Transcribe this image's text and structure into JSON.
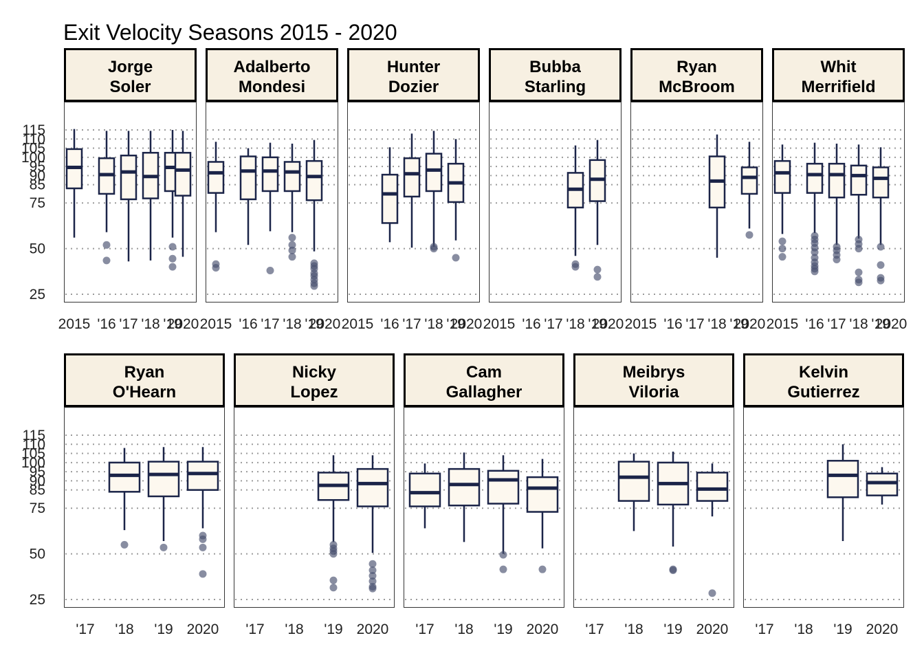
{
  "title": "Exit Velocity Seasons 2015 - 2020",
  "colors": {
    "box_fill": "#FDF8EF",
    "box_line": "#1B2448",
    "strip_fill": "#F7F0E2",
    "outlier": "#48506E",
    "grid": "#9A9A9A"
  },
  "chart_data": [
    {
      "type": "box",
      "title": "Exit Velocity Seasons 2015 - 2020",
      "y_ticks": [
        25,
        50,
        75,
        85,
        90,
        95,
        100,
        105,
        110,
        115
      ],
      "ylim": [
        23,
        118
      ],
      "grid": "horizontal dotted",
      "categories": [
        "2015",
        "'16",
        "'17",
        "'18",
        "'19",
        "2020"
      ],
      "panels": [
        {
          "name": "Jorge\nSoler",
          "boxes": [
            {
              "x": "2015",
              "low": 56,
              "q1": 83,
              "median": 94.5,
              "q3": 104.5,
              "high": 115.5,
              "outliers": []
            },
            {
              "x": "'16",
              "low": 59,
              "q1": 80,
              "median": 90.5,
              "q3": 99.5,
              "high": 114.5,
              "outliers": [
                52,
                43.5
              ]
            },
            {
              "x": "'17",
              "low": 43,
              "q1": 77,
              "median": 92,
              "q3": 101,
              "high": 114.5,
              "outliers": []
            },
            {
              "x": "'18",
              "low": 43.5,
              "q1": 77.5,
              "median": 89.5,
              "q3": 102.5,
              "high": 114.5,
              "outliers": []
            },
            {
              "x": "'19",
              "low": 56,
              "q1": 81.5,
              "median": 94.5,
              "q3": 102.5,
              "high": 115,
              "outliers": [
                51,
                44.5,
                40
              ]
            },
            {
              "x": "2020",
              "low": 45.5,
              "q1": 79,
              "median": 93,
              "q3": 102.5,
              "high": 114.5,
              "outliers": []
            }
          ]
        },
        {
          "name": "Adalberto\nMondesi",
          "boxes": [
            {
              "x": "2015",
              "low": 59,
              "q1": 80.5,
              "median": 91.5,
              "q3": 97.5,
              "high": 108.5,
              "outliers": [
                41.5,
                39.5
              ]
            },
            {
              "x": "'16",
              "low": 52,
              "q1": 77,
              "median": 92.5,
              "q3": 100.5,
              "high": 105,
              "outliers": []
            },
            {
              "x": "'17",
              "low": 59.5,
              "q1": 81.5,
              "median": 92.5,
              "q3": 100,
              "high": 108,
              "outliers": [
                38
              ]
            },
            {
              "x": "'18",
              "low": 59,
              "q1": 81.5,
              "median": 92,
              "q3": 97.5,
              "high": 107.5,
              "outliers": [
                56,
                52,
                49,
                45.5
              ]
            },
            {
              "x": "'19",
              "low": 48.5,
              "q1": 76.5,
              "median": 89.5,
              "q3": 98,
              "high": 109.5,
              "outliers": [
                42,
                40.5,
                39,
                36.5,
                35,
                33,
                31,
                29.5
              ]
            }
          ]
        },
        {
          "name": "Hunter\nDozier",
          "boxes": [
            {
              "x": "'16",
              "low": 53.5,
              "q1": 64,
              "median": 80,
              "q3": 90.5,
              "high": 105.5,
              "outliers": []
            },
            {
              "x": "'17",
              "low": 50.5,
              "q1": 78.5,
              "median": 91,
              "q3": 99.5,
              "high": 113,
              "outliers": []
            },
            {
              "x": "'18",
              "low": 51,
              "q1": 81.5,
              "median": 93,
              "q3": 102,
              "high": 114.5,
              "outliers": [
                51,
                50
              ]
            },
            {
              "x": "'19",
              "low": 54.5,
              "q1": 75.5,
              "median": 86,
              "q3": 96.5,
              "high": 110,
              "outliers": [
                45
              ]
            }
          ]
        },
        {
          "name": "Bubba\nStarling",
          "boxes": [
            {
              "x": "'18",
              "low": 46,
              "q1": 72.5,
              "median": 82.5,
              "q3": 91.5,
              "high": 106.5,
              "outliers": [
                41.5,
                40
              ]
            },
            {
              "x": "'19",
              "low": 52,
              "q1": 76,
              "median": 88,
              "q3": 98.5,
              "high": 109.5,
              "outliers": [
                38.5,
                34.5
              ]
            }
          ]
        },
        {
          "name": "Ryan\nMcBroom",
          "boxes": [
            {
              "x": "'18",
              "low": 45,
              "q1": 72.5,
              "median": 87,
              "q3": 100.5,
              "high": 112.5,
              "outliers": []
            },
            {
              "x": "2020",
              "low": 61,
              "q1": 80,
              "median": 89,
              "q3": 94.5,
              "high": 108.5,
              "outliers": [
                57.5
              ]
            }
          ]
        },
        {
          "name": "Whit\nMerrifield",
          "boxes": [
            {
              "x": "2015",
              "low": 58,
              "q1": 80.5,
              "median": 91.5,
              "q3": 98,
              "high": 107,
              "outliers": [
                54,
                50,
                45.5
              ]
            },
            {
              "x": "'16",
              "low": 58.5,
              "q1": 80.5,
              "median": 90.5,
              "q3": 96.5,
              "high": 108,
              "outliers": [
                57,
                55,
                53,
                50.5,
                48,
                45,
                42.5,
                40.5,
                39,
                37.5
              ]
            },
            {
              "x": "'17",
              "low": 52,
              "q1": 78,
              "median": 90.5,
              "q3": 96.5,
              "high": 107.5,
              "outliers": [
                51,
                49,
                46.5,
                44
              ]
            },
            {
              "x": "'18",
              "low": 55.5,
              "q1": 79.5,
              "median": 90,
              "q3": 95.5,
              "high": 107,
              "outliers": [
                55,
                52.5,
                50,
                37,
                33,
                31.5
              ]
            },
            {
              "x": "'19",
              "low": 52,
              "q1": 78,
              "median": 88.5,
              "q3": 94.5,
              "high": 105.5,
              "outliers": [
                51,
                41,
                34,
                32.5
              ]
            }
          ]
        }
      ]
    },
    {
      "type": "box",
      "y_ticks": [
        25,
        50,
        75,
        85,
        90,
        95,
        100,
        105,
        110,
        115
      ],
      "ylim": [
        23,
        118
      ],
      "grid": "horizontal dotted",
      "categories": [
        "'17",
        "'18",
        "'19",
        "2020"
      ],
      "panels": [
        {
          "name": "Ryan\nO'Hearn",
          "boxes": [
            {
              "x": "'18",
              "low": 63,
              "q1": 84,
              "median": 93,
              "q3": 100,
              "high": 108,
              "outliers": [
                55
              ]
            },
            {
              "x": "'19",
              "low": 57,
              "q1": 81.5,
              "median": 93.5,
              "q3": 100.5,
              "high": 108.5,
              "outliers": [
                53.5
              ]
            },
            {
              "x": "2020",
              "low": 64,
              "q1": 85,
              "median": 94,
              "q3": 100.5,
              "high": 108.5,
              "outliers": [
                60,
                58,
                53.5,
                39
              ]
            }
          ]
        },
        {
          "name": "Nicky\nLopez",
          "boxes": [
            {
              "x": "'19",
              "low": 56.5,
              "q1": 79.5,
              "median": 87.5,
              "q3": 94.5,
              "high": 104,
              "outliers": [
                55,
                53,
                51.5,
                50,
                35.5,
                31.5
              ]
            },
            {
              "x": "2020",
              "low": 50.5,
              "q1": 76,
              "median": 88.5,
              "q3": 96.5,
              "high": 104,
              "outliers": [
                44.5,
                41,
                38,
                35,
                32,
                31
              ]
            }
          ]
        },
        {
          "name": "Cam\nGallagher",
          "boxes": [
            {
              "x": "'17",
              "low": 64,
              "q1": 76,
              "median": 83.5,
              "q3": 94,
              "high": 99.5,
              "outliers": []
            },
            {
              "x": "'18",
              "low": 56.5,
              "q1": 76.5,
              "median": 88,
              "q3": 96.5,
              "high": 105.5,
              "outliers": []
            },
            {
              "x": "'19",
              "low": 50,
              "q1": 77.5,
              "median": 90.5,
              "q3": 95.5,
              "high": 104,
              "outliers": [
                49.5,
                41.5
              ]
            },
            {
              "x": "2020",
              "low": 53,
              "q1": 73,
              "median": 86,
              "q3": 92,
              "high": 102,
              "outliers": [
                41.5
              ]
            }
          ]
        },
        {
          "name": "Meibrys\nViloria",
          "boxes": [
            {
              "x": "'18",
              "low": 62.5,
              "q1": 79,
              "median": 92,
              "q3": 100.5,
              "high": 105,
              "outliers": []
            },
            {
              "x": "'19",
              "low": 54,
              "q1": 77,
              "median": 88.5,
              "q3": 100,
              "high": 106,
              "outliers": [
                41.5,
                41
              ]
            },
            {
              "x": "2020",
              "low": 70.5,
              "q1": 79,
              "median": 85.5,
              "q3": 94.5,
              "high": 99.5,
              "outliers": [
                28.5
              ]
            }
          ]
        },
        {
          "name": "Kelvin\nGutierrez",
          "boxes": [
            {
              "x": "'19",
              "low": 57,
              "q1": 81,
              "median": 93,
              "q3": 101,
              "high": 110,
              "outliers": []
            },
            {
              "x": "2020",
              "low": 77,
              "q1": 82,
              "median": 89,
              "q3": 94,
              "high": 97.5,
              "outliers": []
            }
          ]
        }
      ]
    }
  ]
}
